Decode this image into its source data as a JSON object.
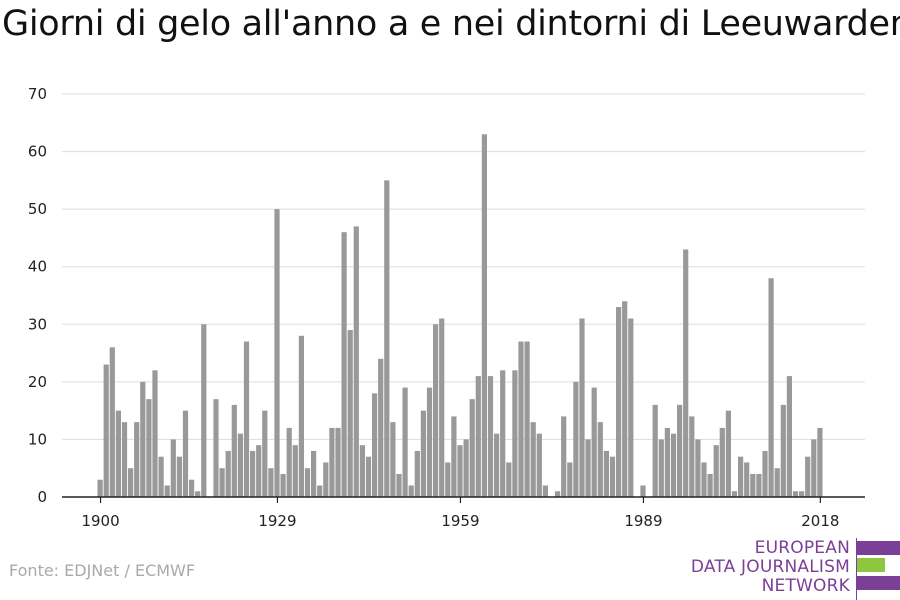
{
  "title": "Giorni di gelo all'anno a e nei dintorni di Leeuwarden",
  "source": "Fonte: EDJNet / ECMWF",
  "logo": {
    "line1": "EUROPEAN",
    "line2": "DATA JOURNALISM",
    "line3": "NETWORK"
  },
  "colors": {
    "bar": "#999999",
    "grid": "#dddddd",
    "axis": "#222222",
    "brand_purple": "#7b3f98",
    "brand_green": "#8dc63f"
  },
  "chart_data": {
    "type": "bar",
    "title": "Giorni di gelo all'anno a e nei dintorni di Leeuwarden",
    "xlabel": "",
    "ylabel": "",
    "x_start": 1900,
    "x_end": 2018,
    "xticks": [
      1900,
      1929,
      1959,
      1989,
      2018
    ],
    "yticks": [
      0,
      10,
      20,
      30,
      40,
      50,
      60,
      70
    ],
    "ylim": [
      0,
      70
    ],
    "grid": true,
    "values": [
      3,
      23,
      26,
      15,
      13,
      5,
      13,
      20,
      17,
      22,
      7,
      2,
      10,
      7,
      15,
      3,
      1,
      30,
      0,
      17,
      5,
      8,
      16,
      11,
      27,
      8,
      9,
      15,
      5,
      50,
      4,
      12,
      9,
      28,
      5,
      8,
      2,
      6,
      12,
      12,
      46,
      29,
      47,
      9,
      7,
      18,
      24,
      55,
      13,
      4,
      19,
      2,
      8,
      15,
      19,
      30,
      31,
      6,
      14,
      9,
      10,
      17,
      21,
      63,
      21,
      11,
      22,
      6,
      22,
      27,
      27,
      13,
      11,
      2,
      0,
      1,
      14,
      6,
      20,
      31,
      10,
      19,
      13,
      8,
      7,
      33,
      34,
      31,
      0,
      2,
      0,
      16,
      10,
      12,
      11,
      16,
      43,
      14,
      10,
      6,
      4,
      9,
      12,
      15,
      1,
      7,
      6,
      4,
      4,
      8,
      38,
      5,
      16,
      21,
      1,
      1,
      7,
      10,
      12
    ]
  }
}
